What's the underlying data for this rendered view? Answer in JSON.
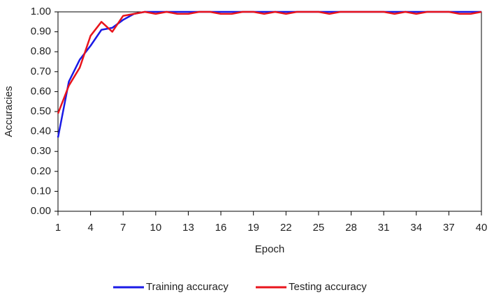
{
  "chart_data": {
    "type": "line",
    "xlabel": "Epoch",
    "ylabel": "Accuracies",
    "x": [
      1,
      2,
      3,
      4,
      5,
      6,
      7,
      8,
      9,
      10,
      11,
      12,
      13,
      14,
      15,
      16,
      17,
      18,
      19,
      20,
      21,
      22,
      23,
      24,
      25,
      26,
      27,
      28,
      29,
      30,
      31,
      32,
      33,
      34,
      35,
      36,
      37,
      38,
      39,
      40
    ],
    "series": [
      {
        "name": "Training accuracy",
        "color": "#1a1ae6",
        "values": [
          0.37,
          0.65,
          0.76,
          0.83,
          0.91,
          0.92,
          0.96,
          0.99,
          1.0,
          1.0,
          1.0,
          1.0,
          1.0,
          1.0,
          1.0,
          1.0,
          1.0,
          1.0,
          1.0,
          1.0,
          1.0,
          1.0,
          1.0,
          1.0,
          1.0,
          1.0,
          1.0,
          1.0,
          1.0,
          1.0,
          1.0,
          1.0,
          1.0,
          1.0,
          1.0,
          1.0,
          1.0,
          1.0,
          1.0,
          1.0
        ]
      },
      {
        "name": "Testing accuracy",
        "color": "#e8141c",
        "values": [
          0.49,
          0.63,
          0.72,
          0.88,
          0.95,
          0.9,
          0.98,
          0.99,
          1.0,
          0.99,
          1.0,
          0.99,
          0.99,
          1.0,
          1.0,
          0.99,
          0.99,
          1.0,
          1.0,
          0.99,
          1.0,
          0.99,
          1.0,
          1.0,
          1.0,
          0.99,
          1.0,
          1.0,
          1.0,
          1.0,
          1.0,
          0.99,
          1.0,
          0.99,
          1.0,
          1.0,
          1.0,
          0.99,
          0.99,
          1.0
        ]
      }
    ],
    "xlim": [
      1,
      40
    ],
    "xticks": [
      1,
      4,
      7,
      10,
      13,
      16,
      19,
      22,
      25,
      28,
      31,
      34,
      37,
      40
    ],
    "ylim": [
      0,
      1
    ],
    "yticks": [
      {
        "value": 0,
        "label": "0.00"
      },
      {
        "value": 0.1,
        "label": "0.10"
      },
      {
        "value": 0.2,
        "label": "0.20"
      },
      {
        "value": 0.3,
        "label": "0.30"
      },
      {
        "value": 0.4,
        "label": "0.40"
      },
      {
        "value": 0.5,
        "label": "0.50"
      },
      {
        "value": 0.6,
        "label": "0.60"
      },
      {
        "value": 0.7,
        "label": "0.70"
      },
      {
        "value": 0.8,
        "label": "0.80"
      },
      {
        "value": 0.9,
        "label": "0.90"
      },
      {
        "value": 1,
        "label": "1.00"
      }
    ],
    "grid": false,
    "legend": "bottom"
  }
}
